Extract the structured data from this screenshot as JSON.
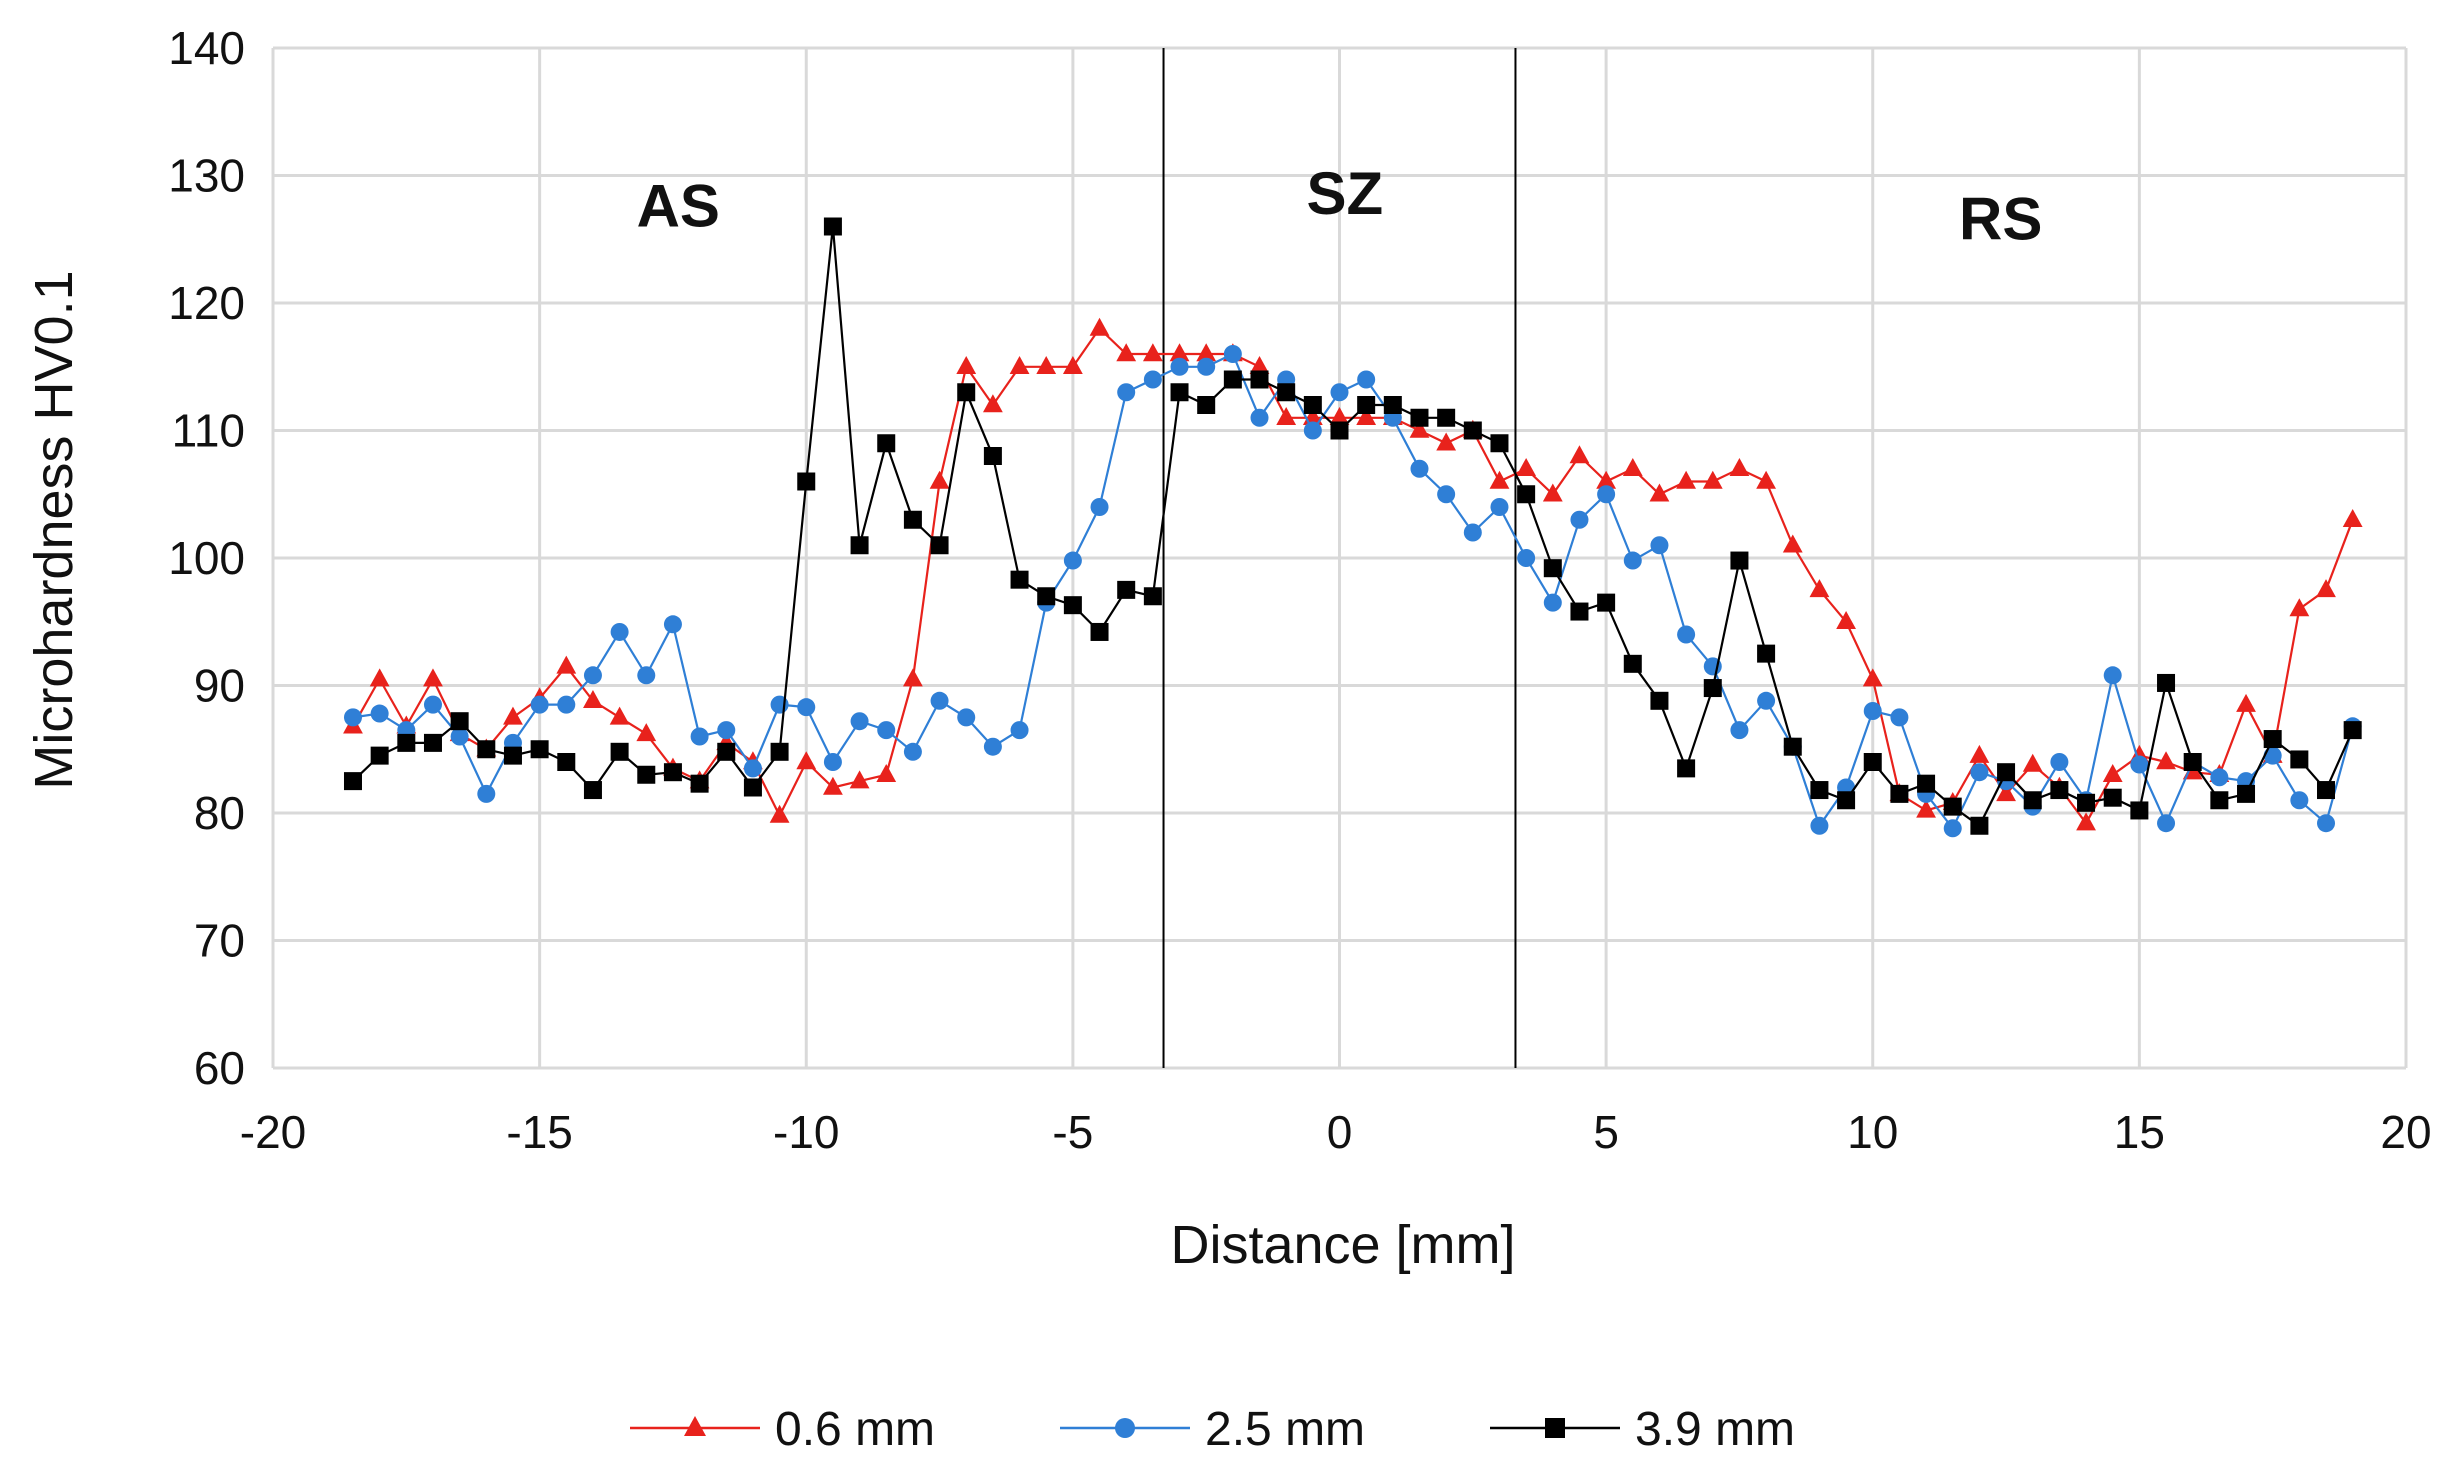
{
  "chart_data": {
    "type": "line",
    "title": "",
    "xlabel": "Distance [mm]",
    "ylabel": "Microhardness HV0.1",
    "xlim": [
      -20,
      20
    ],
    "ylim": [
      60,
      140
    ],
    "xticks": [
      -20,
      -15,
      -10,
      -5,
      0,
      5,
      10,
      15,
      20
    ],
    "yticks": [
      60,
      70,
      80,
      90,
      100,
      110,
      120,
      130,
      140
    ],
    "grid": true,
    "legend_position": "bottom",
    "zone_boundaries": [
      -3.3,
      3.3
    ],
    "zone_labels": [
      {
        "text": "AS",
        "x": -12.4,
        "y": 126
      },
      {
        "text": "SZ",
        "x": 0.1,
        "y": 127
      },
      {
        "text": "RS",
        "x": 12.4,
        "y": 125
      }
    ],
    "series": [
      {
        "name": "0.6 mm",
        "color": "#e8221c",
        "marker": "triangle",
        "x": [
          -18.5,
          -18,
          -17.5,
          -17,
          -16.5,
          -16,
          -15.5,
          -15,
          -14.5,
          -14,
          -13.5,
          -13,
          -12.5,
          -12,
          -11.5,
          -11,
          -10.5,
          -10,
          -9.5,
          -9,
          -8.5,
          -8,
          -7.5,
          -7,
          -6.5,
          -6,
          -5.5,
          -5,
          -4.5,
          -4,
          -3.5,
          -3,
          -2.5,
          -2,
          -1.5,
          -1,
          -0.5,
          0,
          0.5,
          1,
          1.5,
          2,
          2.5,
          3,
          3.5,
          4,
          4.5,
          5,
          5.5,
          6,
          6.5,
          7,
          7.5,
          8,
          8.5,
          9,
          9.5,
          10,
          10.5,
          11,
          11.5,
          12,
          12.5,
          13,
          13.5,
          14,
          14.5,
          15,
          15.5,
          16,
          16.5,
          17,
          17.5,
          18,
          18.5,
          19
        ],
        "values": [
          86.8,
          90.5,
          86.8,
          90.5,
          86.2,
          85,
          87.5,
          89,
          91.5,
          88.8,
          87.5,
          86.2,
          83.5,
          82.5,
          85.5,
          84,
          79.8,
          84,
          82,
          82.5,
          83,
          90.5,
          106,
          115,
          112,
          115,
          115,
          115,
          118,
          116,
          116,
          116,
          116,
          116,
          115,
          111,
          111,
          111,
          111,
          111,
          110,
          109,
          110,
          106,
          107,
          105,
          108,
          106,
          107,
          105,
          106,
          106,
          107,
          106,
          101,
          97.5,
          95,
          90.5,
          81.5,
          80.2,
          80.8,
          84.5,
          81.5,
          83.8,
          82,
          79.2,
          83,
          84.5,
          84,
          83.2,
          83,
          88.5,
          84.5,
          96,
          97.5,
          103
        ]
      },
      {
        "name": "2.5 mm",
        "color": "#2f7fd6",
        "marker": "circle",
        "x": [
          -18.5,
          -18,
          -17.5,
          -17,
          -16.5,
          -16,
          -15.5,
          -15,
          -14.5,
          -14,
          -13.5,
          -13,
          -12.5,
          -12,
          -11.5,
          -11,
          -10.5,
          -10,
          -9.5,
          -9,
          -8.5,
          -8,
          -7.5,
          -7,
          -6.5,
          -6,
          -5.5,
          -5,
          -4.5,
          -4,
          -3.5,
          -3,
          -2.5,
          -2,
          -1.5,
          -1,
          -0.5,
          0,
          0.5,
          1,
          1.5,
          2,
          2.5,
          3,
          3.5,
          4,
          4.5,
          5,
          5.5,
          6,
          6.5,
          7,
          7.5,
          8,
          8.5,
          9,
          9.5,
          10,
          10.5,
          11,
          11.5,
          12,
          12.5,
          13,
          13.5,
          14,
          14.5,
          15,
          15.5,
          16,
          16.5,
          17,
          17.5,
          18,
          18.5,
          19
        ],
        "values": [
          87.5,
          87.8,
          86.5,
          88.5,
          86,
          81.5,
          85.5,
          88.5,
          88.5,
          90.8,
          94.2,
          90.8,
          94.8,
          86,
          86.5,
          83.5,
          88.5,
          88.3,
          84,
          87.2,
          86.5,
          84.8,
          88.8,
          87.5,
          85.2,
          86.5,
          96.5,
          99.8,
          104,
          113,
          114,
          115,
          115,
          116,
          111,
          114,
          110,
          113,
          114,
          111,
          107,
          105,
          102,
          104,
          100,
          96.5,
          103,
          105,
          99.8,
          101,
          94,
          91.5,
          86.5,
          88.8,
          85.2,
          79,
          82,
          88,
          87.5,
          81.5,
          78.8,
          83.2,
          82.5,
          80.5,
          84,
          81,
          90.8,
          83.8,
          79.2,
          84,
          82.8,
          82.5,
          84.5,
          81,
          79.2,
          86.8
        ]
      },
      {
        "name": "3.9 mm",
        "color": "#000000",
        "marker": "square",
        "x": [
          -18.5,
          -18,
          -17.5,
          -17,
          -16.5,
          -16,
          -15.5,
          -15,
          -14.5,
          -14,
          -13.5,
          -13,
          -12.5,
          -12,
          -11.5,
          -11,
          -10.5,
          -10,
          -9.5,
          -9,
          -8.5,
          -8,
          -7.5,
          -7,
          -6.5,
          -6,
          -5.5,
          -5,
          -4.5,
          -4,
          -3.5,
          -3,
          -2.5,
          -2,
          -1.5,
          -1,
          -0.5,
          0,
          0.5,
          1,
          1.5,
          2,
          2.5,
          3,
          3.5,
          4,
          4.5,
          5,
          5.5,
          6,
          6.5,
          7,
          7.5,
          8,
          8.5,
          9,
          9.5,
          10,
          10.5,
          11,
          11.5,
          12,
          12.5,
          13,
          13.5,
          14,
          14.5,
          15,
          15.5,
          16,
          16.5,
          17,
          17.5,
          18,
          18.5,
          19
        ],
        "values": [
          82.5,
          84.5,
          85.5,
          85.5,
          87.2,
          85,
          84.5,
          85,
          84,
          81.8,
          84.8,
          83,
          83.2,
          82.3,
          84.8,
          82,
          84.8,
          106,
          126,
          101,
          109,
          103,
          101,
          113,
          108,
          98.3,
          97,
          96.3,
          94.2,
          97.5,
          97,
          113,
          112,
          114,
          114,
          113,
          112,
          110,
          112,
          112,
          111,
          111,
          110,
          109,
          105,
          99.2,
          95.8,
          96.5,
          91.7,
          88.8,
          83.5,
          89.8,
          99.8,
          92.5,
          85.2,
          81.8,
          81,
          84,
          81.5,
          82.3,
          80.5,
          79,
          83.2,
          81,
          81.8,
          80.8,
          81.2,
          80.2,
          90.2,
          84,
          81,
          81.5,
          85.8,
          84.2,
          81.8,
          86.5
        ]
      }
    ]
  }
}
